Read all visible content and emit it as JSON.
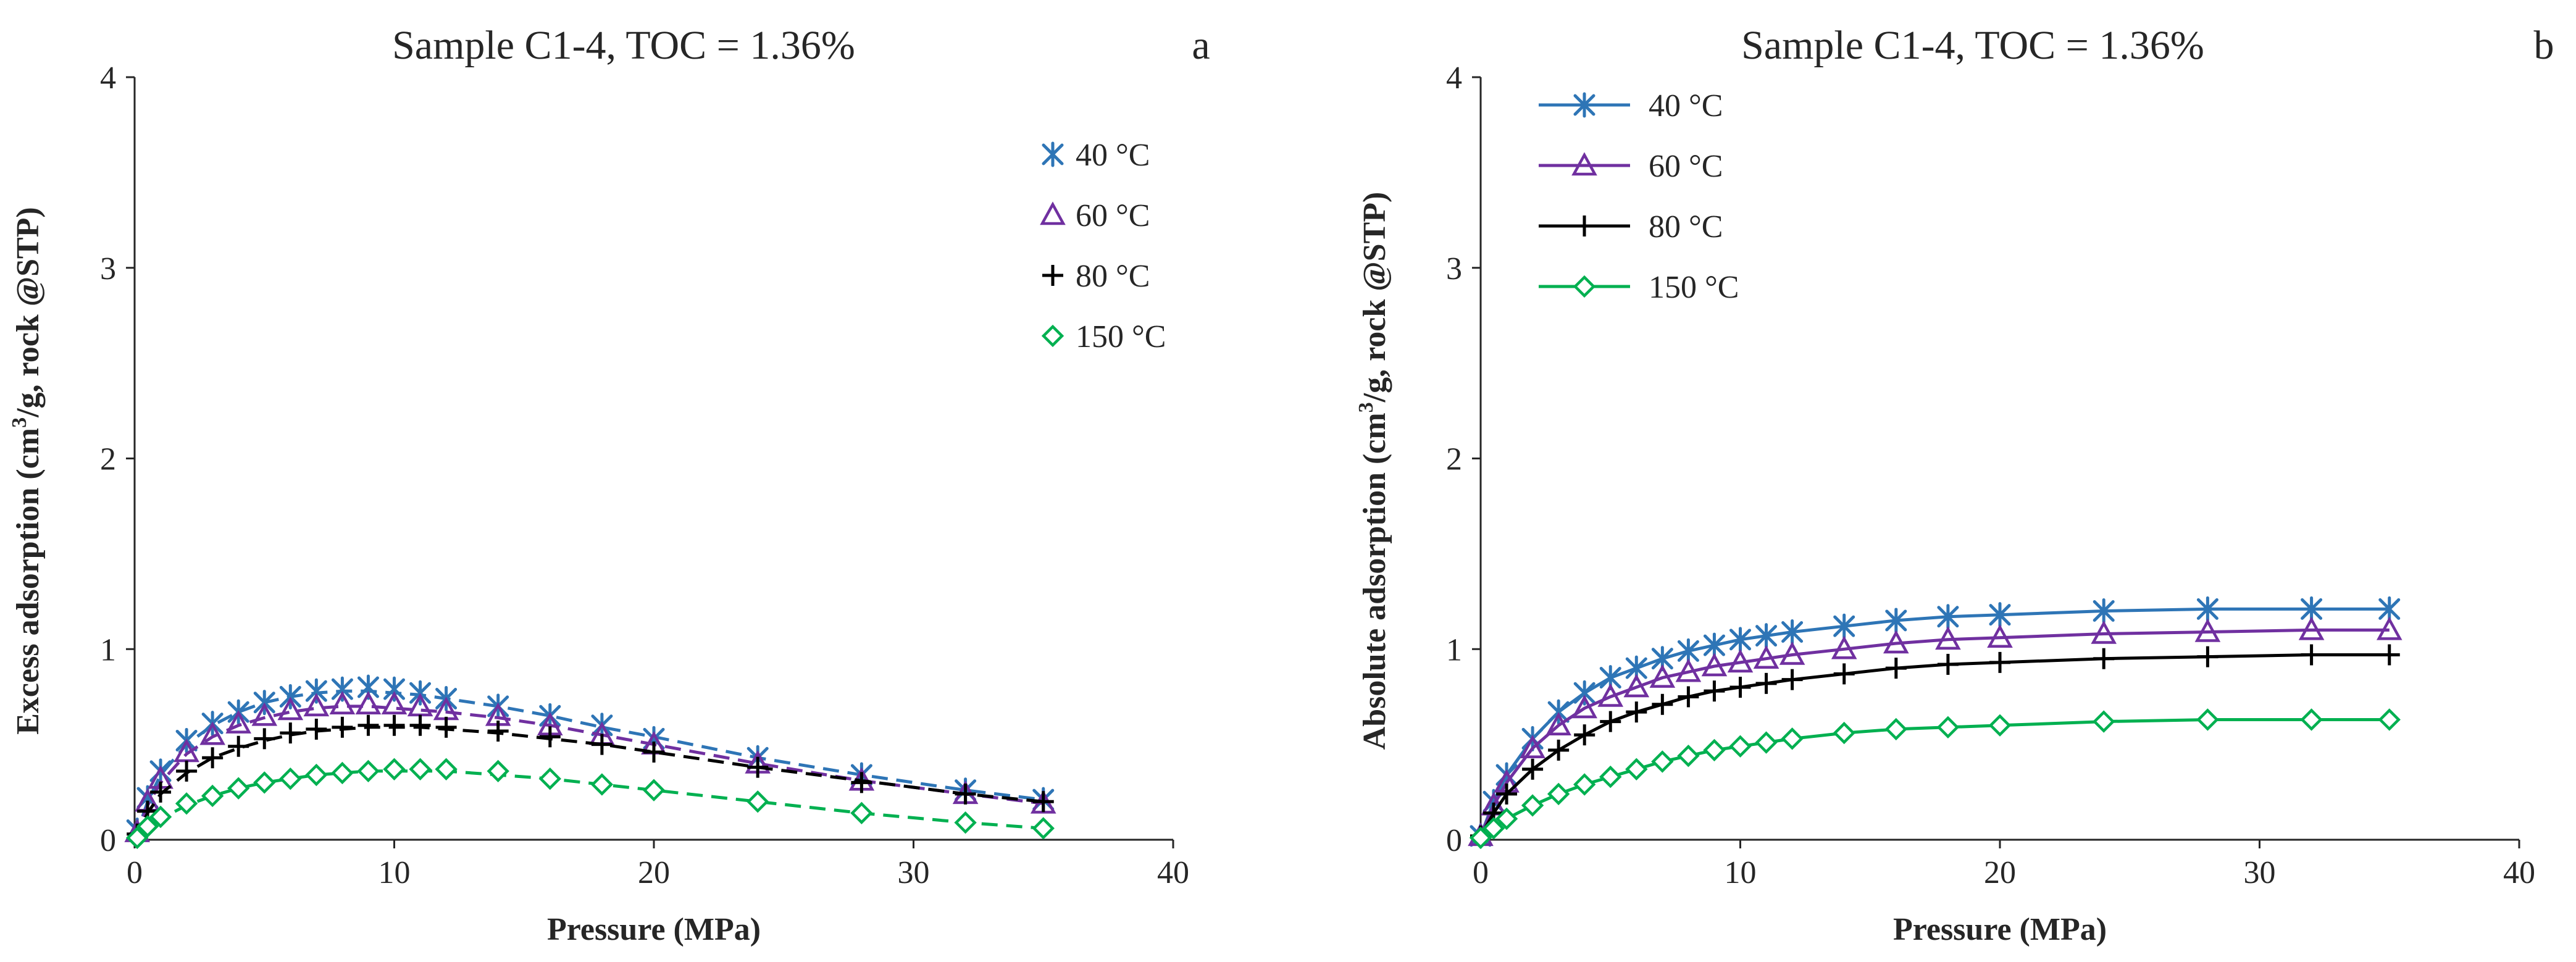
{
  "chart_data": [
    {
      "panel": "a",
      "type": "scatter",
      "title": "Sample C1-4, TOC = 1.36%",
      "xlabel": "Pressure (MPa)",
      "ylabel_prefix": "Excess adsorption (cm",
      "ylabel_sup": "3",
      "ylabel_suffix": "/g, rock @STP)",
      "xlim": [
        0,
        40
      ],
      "ylim": [
        0,
        4
      ],
      "xticks": [
        "0",
        "10",
        "20",
        "30",
        "40"
      ],
      "yticks": [
        "0",
        "1",
        "2",
        "3",
        "4"
      ],
      "legend_position": "top-right",
      "fit_style": "dashed",
      "series": [
        {
          "name": "40 °C",
          "color": "#2e75b6",
          "marker": "star",
          "x": [
            0.1,
            0.5,
            1,
            2,
            3,
            4,
            5,
            6,
            7,
            8,
            9,
            10,
            11,
            12,
            14,
            16,
            18,
            20,
            24,
            28,
            32,
            35
          ],
          "y": [
            0.05,
            0.22,
            0.36,
            0.52,
            0.61,
            0.67,
            0.72,
            0.75,
            0.78,
            0.79,
            0.8,
            0.79,
            0.77,
            0.74,
            0.7,
            0.65,
            0.6,
            0.53,
            0.43,
            0.34,
            0.26,
            0.21
          ],
          "fit_x": [
            0,
            0.5,
            1,
            2,
            3,
            4,
            5,
            6,
            7,
            8,
            9,
            10,
            11,
            12,
            14,
            16,
            18,
            20,
            24,
            28,
            32,
            35
          ],
          "fit_y": [
            0,
            0.2,
            0.34,
            0.5,
            0.6,
            0.67,
            0.72,
            0.75,
            0.77,
            0.78,
            0.78,
            0.77,
            0.76,
            0.74,
            0.7,
            0.65,
            0.59,
            0.54,
            0.43,
            0.34,
            0.26,
            0.21
          ]
        },
        {
          "name": "60 °C",
          "color": "#7030a0",
          "marker": "triangle",
          "x": [
            0.1,
            0.5,
            1,
            2,
            3,
            4,
            5,
            6,
            7,
            8,
            9,
            10,
            11,
            12,
            14,
            16,
            18,
            20,
            24,
            28,
            32,
            35
          ],
          "y": [
            0.04,
            0.2,
            0.32,
            0.46,
            0.55,
            0.61,
            0.65,
            0.68,
            0.7,
            0.71,
            0.71,
            0.71,
            0.7,
            0.68,
            0.65,
            0.6,
            0.55,
            0.5,
            0.4,
            0.31,
            0.24,
            0.19
          ],
          "fit_x": [
            0,
            0.5,
            1,
            2,
            3,
            4,
            5,
            6,
            7,
            8,
            9,
            10,
            11,
            12,
            14,
            16,
            18,
            20,
            24,
            28,
            32,
            35
          ],
          "fit_y": [
            0,
            0.18,
            0.3,
            0.45,
            0.54,
            0.6,
            0.64,
            0.67,
            0.69,
            0.7,
            0.7,
            0.69,
            0.68,
            0.67,
            0.64,
            0.6,
            0.55,
            0.5,
            0.4,
            0.31,
            0.24,
            0.19
          ]
        },
        {
          "name": "80 °C",
          "color": "#000000",
          "marker": "plus",
          "x": [
            0.1,
            0.5,
            1,
            2,
            3,
            4,
            5,
            6,
            7,
            8,
            9,
            10,
            11,
            12,
            14,
            16,
            18,
            20,
            24,
            28,
            32,
            35
          ],
          "y": [
            0.03,
            0.15,
            0.25,
            0.36,
            0.43,
            0.49,
            0.53,
            0.56,
            0.58,
            0.59,
            0.6,
            0.6,
            0.6,
            0.59,
            0.57,
            0.54,
            0.5,
            0.46,
            0.38,
            0.3,
            0.24,
            0.2
          ],
          "fit_x": [
            0,
            0.5,
            1,
            2,
            3,
            4,
            5,
            6,
            7,
            8,
            9,
            10,
            11,
            12,
            14,
            16,
            18,
            20,
            24,
            28,
            32,
            35
          ],
          "fit_y": [
            0,
            0.14,
            0.24,
            0.35,
            0.43,
            0.48,
            0.52,
            0.55,
            0.57,
            0.58,
            0.59,
            0.59,
            0.59,
            0.58,
            0.56,
            0.53,
            0.5,
            0.46,
            0.38,
            0.31,
            0.24,
            0.2
          ]
        },
        {
          "name": "150 °C",
          "color": "#00b050",
          "marker": "diamond",
          "x": [
            0.1,
            0.5,
            1,
            2,
            3,
            4,
            5,
            6,
            7,
            8,
            9,
            10,
            11,
            12,
            14,
            16,
            18,
            20,
            24,
            28,
            32,
            35
          ],
          "y": [
            0.01,
            0.07,
            0.12,
            0.19,
            0.23,
            0.27,
            0.3,
            0.32,
            0.34,
            0.35,
            0.36,
            0.37,
            0.37,
            0.37,
            0.36,
            0.32,
            0.29,
            0.26,
            0.2,
            0.14,
            0.09,
            0.06
          ],
          "fit_x": [
            0,
            0.5,
            1,
            2,
            3,
            4,
            5,
            6,
            7,
            8,
            9,
            10,
            11,
            12,
            14,
            16,
            18,
            20,
            24,
            28,
            32,
            35
          ],
          "fit_y": [
            0,
            0.06,
            0.11,
            0.18,
            0.23,
            0.27,
            0.3,
            0.32,
            0.34,
            0.35,
            0.36,
            0.36,
            0.36,
            0.36,
            0.34,
            0.32,
            0.29,
            0.26,
            0.2,
            0.14,
            0.09,
            0.06
          ]
        }
      ]
    },
    {
      "panel": "b",
      "type": "line",
      "title": "Sample C1-4, TOC = 1.36%",
      "xlabel": "Pressure (MPa)",
      "ylabel_prefix": "Absolute adsorption (cm",
      "ylabel_sup": "3",
      "ylabel_suffix": "/g, rock @STP)",
      "xlim": [
        0,
        40
      ],
      "ylim": [
        0,
        4
      ],
      "xticks": [
        "0",
        "10",
        "20",
        "30",
        "40"
      ],
      "yticks": [
        "0",
        "1",
        "2",
        "3",
        "4"
      ],
      "legend_position": "top-left",
      "fit_style": "solid",
      "series": [
        {
          "name": "40 °C",
          "color": "#2e75b6",
          "marker": "star",
          "x": [
            0,
            0.5,
            1,
            2,
            3,
            4,
            5,
            6,
            7,
            8,
            9,
            10,
            11,
            12,
            14,
            16,
            18,
            20,
            24,
            28,
            32,
            35
          ],
          "y": [
            0.02,
            0.2,
            0.34,
            0.53,
            0.67,
            0.77,
            0.85,
            0.9,
            0.95,
            0.99,
            1.02,
            1.05,
            1.07,
            1.09,
            1.12,
            1.15,
            1.17,
            1.18,
            1.2,
            1.21,
            1.21,
            1.21
          ]
        },
        {
          "name": "60 °C",
          "color": "#7030a0",
          "marker": "triangle",
          "x": [
            0,
            0.5,
            1,
            2,
            3,
            4,
            5,
            6,
            7,
            8,
            9,
            10,
            11,
            12,
            14,
            16,
            18,
            20,
            24,
            28,
            32,
            35
          ],
          "y": [
            0.02,
            0.18,
            0.3,
            0.48,
            0.6,
            0.69,
            0.75,
            0.8,
            0.85,
            0.88,
            0.91,
            0.93,
            0.95,
            0.97,
            1.0,
            1.03,
            1.05,
            1.06,
            1.08,
            1.09,
            1.1,
            1.1
          ]
        },
        {
          "name": "80 °C",
          "color": "#000000",
          "marker": "plus",
          "x": [
            0,
            0.5,
            1,
            2,
            3,
            4,
            5,
            6,
            7,
            8,
            9,
            10,
            11,
            12,
            14,
            16,
            18,
            20,
            24,
            28,
            32,
            35
          ],
          "y": [
            0.02,
            0.14,
            0.24,
            0.37,
            0.47,
            0.55,
            0.62,
            0.67,
            0.71,
            0.75,
            0.78,
            0.8,
            0.82,
            0.84,
            0.87,
            0.9,
            0.92,
            0.93,
            0.95,
            0.96,
            0.97,
            0.97
          ]
        },
        {
          "name": "150 °C",
          "color": "#00b050",
          "marker": "diamond",
          "x": [
            0,
            0.5,
            1,
            2,
            3,
            4,
            5,
            6,
            7,
            8,
            9,
            10,
            11,
            12,
            14,
            16,
            18,
            20,
            24,
            28,
            32,
            35
          ],
          "y": [
            0.01,
            0.06,
            0.11,
            0.18,
            0.24,
            0.29,
            0.33,
            0.37,
            0.41,
            0.44,
            0.47,
            0.49,
            0.51,
            0.53,
            0.56,
            0.58,
            0.59,
            0.6,
            0.62,
            0.63,
            0.63,
            0.63
          ]
        }
      ]
    }
  ]
}
